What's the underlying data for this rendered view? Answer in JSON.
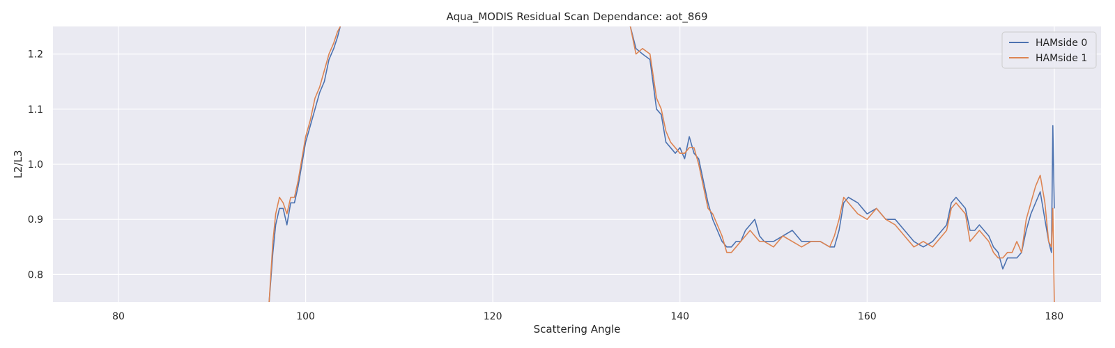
{
  "chart_data": {
    "type": "line",
    "title": "Aqua_MODIS Residual Scan Dependance: aot_869",
    "xlabel": "Scattering Angle",
    "ylabel": "L2/L3",
    "xlim": [
      73,
      185
    ],
    "ylim": [
      0.75,
      1.25
    ],
    "x_ticks": [
      80,
      100,
      120,
      140,
      160,
      180
    ],
    "y_ticks": [
      0.8,
      0.9,
      1.0,
      1.1,
      1.2
    ],
    "x_tick_labels": [
      "80",
      "100",
      "120",
      "140",
      "160",
      "180"
    ],
    "y_tick_labels": [
      "0.8",
      "0.9",
      "1.0",
      "1.1",
      "1.2"
    ],
    "grid": true,
    "legend_position": "top-right",
    "colors": {
      "background": "#eaeaf2",
      "grid": "#ffffff"
    },
    "series": [
      {
        "name": "HAMside 0",
        "color": "#4c72b0",
        "x": [
          96.1,
          96.5,
          96.8,
          97.2,
          97.6,
          98.0,
          98.4,
          98.8,
          99.2,
          99.6,
          100.0,
          100.5,
          101.0,
          101.5,
          102.0,
          102.5,
          103.0,
          103.4,
          103.7,
          134.7,
          135.3,
          136.0,
          136.8,
          137.5,
          138.0,
          138.5,
          139.0,
          139.5,
          140.0,
          140.5,
          141.0,
          141.5,
          142.0,
          142.5,
          143.0,
          143.5,
          144.0,
          144.5,
          145.0,
          145.5,
          146.0,
          146.5,
          147.0,
          147.5,
          148.0,
          148.5,
          149.0,
          150.0,
          151.0,
          152.0,
          153.0,
          154.0,
          155.0,
          156.0,
          156.5,
          157.0,
          157.5,
          158.0,
          159.0,
          160.0,
          161.0,
          162.0,
          163.0,
          164.0,
          165.0,
          166.0,
          167.0,
          168.0,
          168.5,
          169.0,
          169.5,
          170.0,
          170.5,
          171.0,
          171.5,
          172.0,
          173.0,
          173.5,
          174.0,
          174.5,
          175.0,
          175.5,
          176.0,
          176.5,
          177.0,
          177.5,
          178.0,
          178.5,
          179.0,
          179.4,
          179.7,
          179.85,
          180.0
        ],
        "y": [
          0.75,
          0.84,
          0.89,
          0.92,
          0.92,
          0.89,
          0.93,
          0.93,
          0.96,
          1.0,
          1.04,
          1.07,
          1.1,
          1.13,
          1.15,
          1.19,
          1.21,
          1.23,
          1.25,
          1.25,
          1.21,
          1.2,
          1.19,
          1.1,
          1.09,
          1.04,
          1.03,
          1.02,
          1.03,
          1.01,
          1.05,
          1.02,
          1.01,
          0.97,
          0.93,
          0.9,
          0.88,
          0.86,
          0.85,
          0.85,
          0.86,
          0.86,
          0.88,
          0.89,
          0.9,
          0.87,
          0.86,
          0.86,
          0.87,
          0.88,
          0.86,
          0.86,
          0.86,
          0.85,
          0.85,
          0.88,
          0.93,
          0.94,
          0.93,
          0.91,
          0.92,
          0.9,
          0.9,
          0.88,
          0.86,
          0.85,
          0.86,
          0.88,
          0.89,
          0.93,
          0.94,
          0.93,
          0.92,
          0.88,
          0.88,
          0.89,
          0.87,
          0.85,
          0.84,
          0.81,
          0.83,
          0.83,
          0.83,
          0.84,
          0.88,
          0.91,
          0.93,
          0.95,
          0.9,
          0.86,
          0.84,
          1.07,
          0.92
        ]
      },
      {
        "name": "HAMside 1",
        "color": "#dd8452",
        "x": [
          96.1,
          96.5,
          96.8,
          97.2,
          97.6,
          98.0,
          98.4,
          98.8,
          99.2,
          99.6,
          100.0,
          100.5,
          101.0,
          101.5,
          102.0,
          102.5,
          103.0,
          103.4,
          103.7,
          134.7,
          135.3,
          136.0,
          136.8,
          137.5,
          138.0,
          138.5,
          139.0,
          139.5,
          140.0,
          140.5,
          141.0,
          141.5,
          142.0,
          142.5,
          143.0,
          143.5,
          144.0,
          144.5,
          145.0,
          145.5,
          146.0,
          146.5,
          147.0,
          147.5,
          148.0,
          148.5,
          149.0,
          150.0,
          151.0,
          152.0,
          153.0,
          154.0,
          155.0,
          156.0,
          156.5,
          157.0,
          157.5,
          158.0,
          159.0,
          160.0,
          161.0,
          162.0,
          163.0,
          164.0,
          165.0,
          166.0,
          167.0,
          168.0,
          168.5,
          169.0,
          169.5,
          170.0,
          170.5,
          171.0,
          171.5,
          172.0,
          173.0,
          173.5,
          174.0,
          174.5,
          175.0,
          175.5,
          176.0,
          176.5,
          177.0,
          177.5,
          178.0,
          178.5,
          179.0,
          179.4,
          179.7,
          179.85,
          180.0
        ],
        "y": [
          0.75,
          0.86,
          0.91,
          0.94,
          0.93,
          0.91,
          0.94,
          0.94,
          0.97,
          1.01,
          1.05,
          1.08,
          1.12,
          1.14,
          1.17,
          1.2,
          1.22,
          1.24,
          1.25,
          1.25,
          1.2,
          1.21,
          1.2,
          1.12,
          1.1,
          1.06,
          1.04,
          1.03,
          1.02,
          1.02,
          1.03,
          1.03,
          1.0,
          0.96,
          0.92,
          0.91,
          0.89,
          0.87,
          0.84,
          0.84,
          0.85,
          0.86,
          0.87,
          0.88,
          0.87,
          0.86,
          0.86,
          0.85,
          0.87,
          0.86,
          0.85,
          0.86,
          0.86,
          0.85,
          0.87,
          0.9,
          0.94,
          0.93,
          0.91,
          0.9,
          0.92,
          0.9,
          0.89,
          0.87,
          0.85,
          0.86,
          0.85,
          0.87,
          0.88,
          0.92,
          0.93,
          0.92,
          0.91,
          0.86,
          0.87,
          0.88,
          0.86,
          0.84,
          0.83,
          0.83,
          0.84,
          0.84,
          0.86,
          0.84,
          0.9,
          0.93,
          0.96,
          0.98,
          0.93,
          0.86,
          0.85,
          0.92,
          0.75
        ]
      }
    ]
  }
}
